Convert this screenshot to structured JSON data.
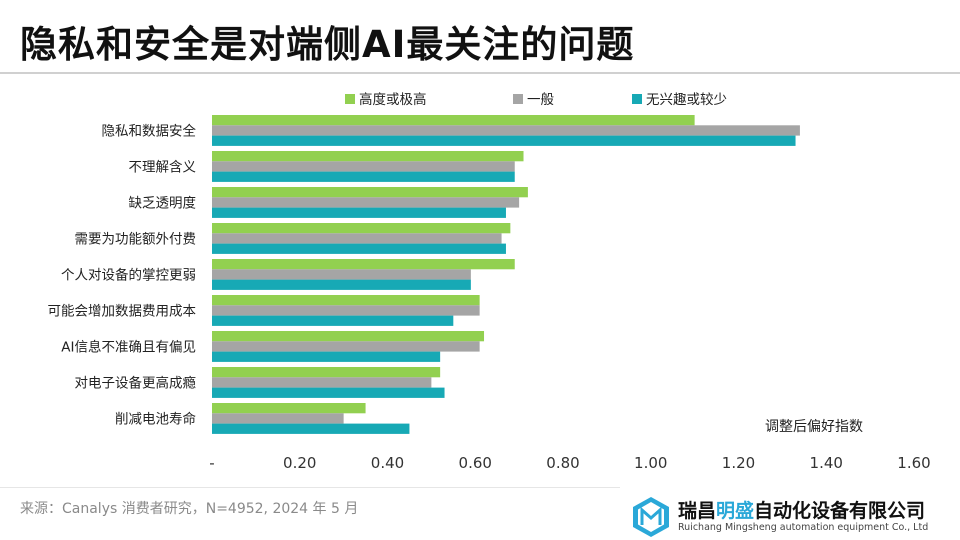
{
  "title": "隐私和安全是对端侧AI最关注的问题",
  "source": "来源：Canalys 消费者研究，N=4952, 2024 年 5 月",
  "watermark": {
    "name_part1": "瑞昌",
    "name_part2": "明盛",
    "name_part3": "自动化设备有限公司",
    "english": "Ruichang Mingsheng automation equipment Co., Ltd",
    "mark_color": "#2aa8d8"
  },
  "chart_data": {
    "type": "bar",
    "orientation": "horizontal",
    "index_label": "调整后偏好指数",
    "categories": [
      "隐私和数据安全",
      "不理解含义",
      "缺乏透明度",
      "需要为功能额外付费",
      "个人对设备的掌控更弱",
      "可能会增加数据费用成本",
      "AI信息不准确且有偏见",
      "对电子设备更高成瘾",
      "削减电池寿命"
    ],
    "series": [
      {
        "name": "高度或极高",
        "color": "#92d050",
        "values": [
          1.1,
          0.71,
          0.72,
          0.68,
          0.69,
          0.61,
          0.62,
          0.52,
          0.35
        ]
      },
      {
        "name": "一般",
        "color": "#a5a5a5",
        "values": [
          1.34,
          0.69,
          0.7,
          0.66,
          0.59,
          0.61,
          0.61,
          0.5,
          0.3
        ]
      },
      {
        "name": "无兴趣或较少",
        "color": "#17a9b5",
        "values": [
          1.33,
          0.69,
          0.67,
          0.67,
          0.59,
          0.55,
          0.52,
          0.53,
          0.45
        ]
      }
    ],
    "xlim": [
      0,
      1.6
    ],
    "xticks": [
      {
        "value": 0,
        "label": "-"
      },
      {
        "value": 0.2,
        "label": "0.20"
      },
      {
        "value": 0.4,
        "label": "0.40"
      },
      {
        "value": 0.6,
        "label": "0.60"
      },
      {
        "value": 0.8,
        "label": "0.80"
      },
      {
        "value": 1.0,
        "label": "1.00"
      },
      {
        "value": 1.2,
        "label": "1.20"
      },
      {
        "value": 1.4,
        "label": "1.40"
      },
      {
        "value": 1.6,
        "label": "1.60"
      }
    ],
    "grid": false,
    "legend_position": "top"
  }
}
